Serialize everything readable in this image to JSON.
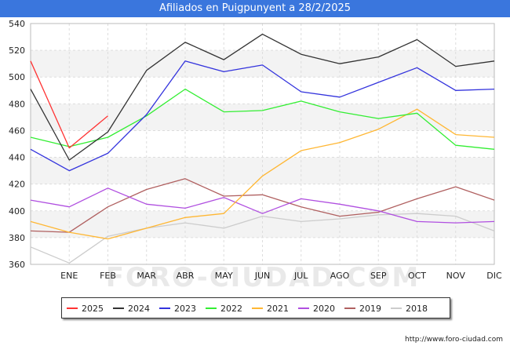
{
  "chart_data": {
    "type": "line",
    "title": "Afiliados en Puigpunyent a 28/2/2025",
    "categories": [
      "",
      "ENE",
      "FEB",
      "MAR",
      "ABR",
      "MAY",
      "JUN",
      "JUL",
      "AGO",
      "SEP",
      "OCT",
      "NOV",
      "DIC"
    ],
    "ylim": [
      360,
      540
    ],
    "yticks": [
      360,
      380,
      400,
      420,
      440,
      460,
      480,
      500,
      520,
      540
    ],
    "grid": true,
    "legend_position": "bottom",
    "series": [
      {
        "name": "2025",
        "color": "#ff3333",
        "values": [
          512,
          447,
          471,
          null,
          null,
          null,
          null,
          null,
          null,
          null,
          null,
          null,
          null
        ]
      },
      {
        "name": "2024",
        "color": "#333333",
        "values": [
          491,
          438,
          459,
          505,
          526,
          513,
          532,
          517,
          510,
          515,
          528,
          508,
          512
        ]
      },
      {
        "name": "2023",
        "color": "#3333dd",
        "values": [
          446,
          430,
          443,
          472,
          512,
          504,
          509,
          489,
          485,
          496,
          507,
          490,
          491
        ]
      },
      {
        "name": "2022",
        "color": "#33ee33",
        "values": [
          455,
          448,
          455,
          471,
          491,
          474,
          475,
          482,
          474,
          469,
          473,
          449,
          446
        ]
      },
      {
        "name": "2021",
        "color": "#ffb733",
        "values": [
          392,
          384,
          379,
          387,
          395,
          398,
          426,
          445,
          451,
          461,
          476,
          457,
          455
        ]
      },
      {
        "name": "2020",
        "color": "#b04fe0",
        "values": [
          408,
          403,
          417,
          405,
          402,
          410,
          398,
          409,
          405,
          400,
          392,
          391,
          392
        ]
      },
      {
        "name": "2019",
        "color": "#b06060",
        "values": [
          385,
          384,
          403,
          416,
          424,
          411,
          412,
          403,
          396,
          399,
          409,
          418,
          408
        ]
      },
      {
        "name": "2018",
        "color": "#cccccc",
        "values": [
          373,
          361,
          381,
          387,
          391,
          387,
          396,
          392,
          394,
          397,
          398,
          396,
          385
        ]
      }
    ]
  },
  "watermark": "FORO-CIUDAD.COM",
  "footer": {
    "url": "http://www.foro-ciudad.com"
  }
}
